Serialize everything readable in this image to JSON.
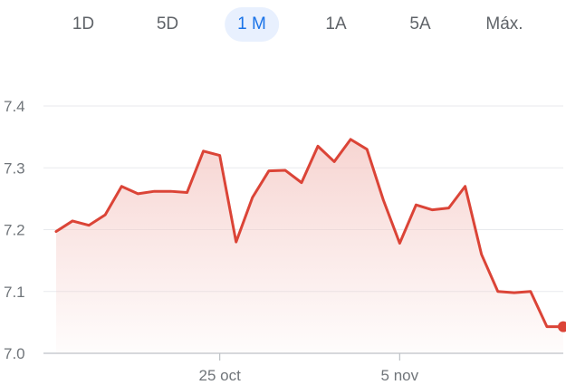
{
  "range_tabs": [
    {
      "label": "1D",
      "active": false
    },
    {
      "label": "5D",
      "active": false
    },
    {
      "label": "1 M",
      "active": true
    },
    {
      "label": "1A",
      "active": false
    },
    {
      "label": "5A",
      "active": false
    },
    {
      "label": "Máx.",
      "active": false
    }
  ],
  "colors": {
    "line": "#db4437",
    "fill_top": "#f4c7c3",
    "grid": "#e8eaed",
    "axis": "#bdc1c6",
    "active_tab_bg": "#e8f0fe",
    "active_tab_text": "#1a73e8"
  },
  "chart_data": {
    "type": "area",
    "title": "",
    "xlabel": "",
    "ylabel": "",
    "ylim": [
      7.0,
      7.4
    ],
    "y_ticks": [
      7.0,
      7.1,
      7.2,
      7.3,
      7.4
    ],
    "y_tick_labels": [
      "7.0",
      "7.1",
      "7.2",
      "7.3",
      "7.4"
    ],
    "x_ticks": [
      {
        "index": 10,
        "label": "25 oct"
      },
      {
        "index": 21,
        "label": "5 nov"
      }
    ],
    "grid": true,
    "series": [
      {
        "values": [
          7.197,
          7.214,
          7.207,
          7.224,
          7.27,
          7.258,
          7.262,
          7.262,
          7.26,
          7.327,
          7.32,
          7.18,
          7.252,
          7.295,
          7.296,
          7.276,
          7.335,
          7.31,
          7.346,
          7.33,
          7.248,
          7.178,
          7.24,
          7.232,
          7.235,
          7.27,
          7.16,
          7.1,
          7.098,
          7.1,
          7.043,
          7.043
        ]
      }
    ],
    "last_point_marker": true
  }
}
